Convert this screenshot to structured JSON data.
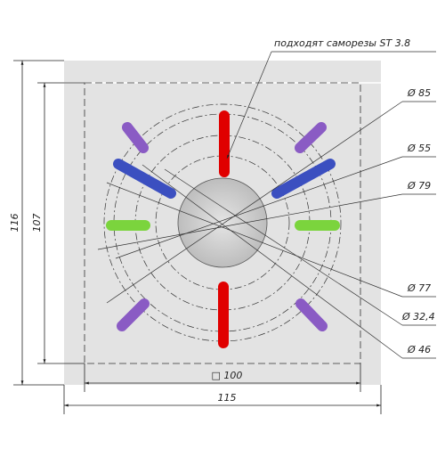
{
  "note": "подходят саморезы ST 3.8",
  "diameters": [
    "Ø 85",
    "Ø 55",
    "Ø 79",
    "Ø 77",
    "Ø 32,4",
    "Ø 46"
  ],
  "dimensions": {
    "outer_height": "116",
    "inner_height": "107",
    "inner_width": "□ 100",
    "outer_width": "115"
  }
}
